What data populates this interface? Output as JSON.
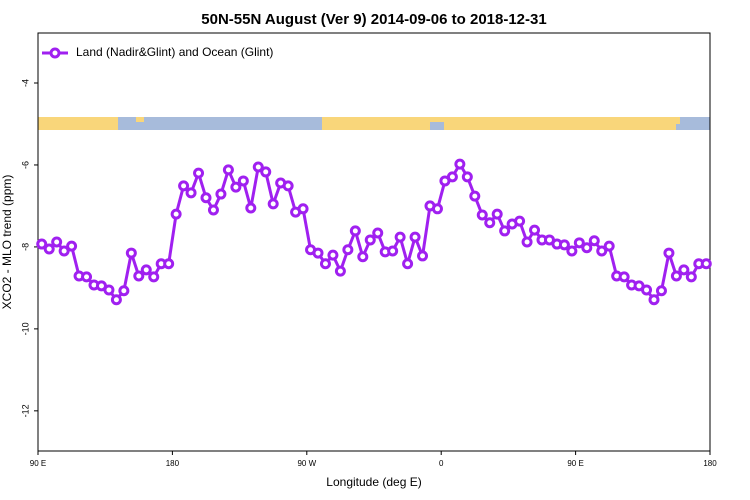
{
  "chart_data": {
    "type": "line",
    "title": "50N-55N August (Ver 9)   2014-09-06 to 2018-12-31",
    "x_label": "Longitude (deg E)",
    "y_label": "XCO2 - MLO trend (ppm)",
    "legend_position": "upper left",
    "xlim": [
      90,
      540
    ],
    "ylim": [
      -12.98,
      -2.78
    ],
    "xticks": [
      {
        "value": 90,
        "label": "90 E"
      },
      180,
      {
        "value": 270,
        "label": "90 W"
      },
      {
        "value": 360,
        "label": "0"
      },
      {
        "value": 450,
        "label": "90 E"
      },
      {
        "value": 540,
        "label": "180"
      }
    ],
    "yticks": [
      -12,
      -10,
      -8,
      -6,
      -4
    ],
    "x": [
      92.5,
      97.5,
      102.5,
      107.5,
      112.5,
      117.5,
      122.5,
      127.5,
      132.5,
      137.5,
      142.5,
      147.5,
      152.5,
      157.5,
      162.5,
      167.5,
      172.5,
      177.5,
      182.5,
      187.5,
      192.5,
      197.5,
      202.5,
      207.5,
      212.5,
      217.5,
      222.5,
      227.5,
      232.5,
      237.5,
      242.5,
      247.5,
      252.5,
      257.5,
      262.5,
      267.5,
      272.5,
      277.5,
      282.5,
      287.5,
      292.5,
      297.5,
      302.5,
      307.5,
      312.5,
      317.5,
      322.5,
      327.5,
      332.5,
      337.5,
      342.5,
      347.5,
      352.5,
      357.5,
      362.5,
      367.5,
      372.5,
      377.5,
      382.5,
      387.5,
      392.5,
      397.5,
      402.5,
      407.5,
      412.5,
      417.5,
      422.5,
      427.5,
      432.5,
      437.5,
      442.5,
      447.5,
      452.5,
      457.5,
      462.5,
      467.5,
      472.5,
      477.5,
      482.5,
      487.5,
      492.5,
      497.5,
      502.5,
      507.5,
      512.5,
      517.5,
      522.5,
      527.5,
      532.5,
      537.5
    ],
    "series": [
      {
        "name": "Land (Nadir&Glint) and Ocean (Glint)",
        "color": "#a020f0",
        "values": [
          -7.93,
          -8.05,
          -7.88,
          -8.1,
          -7.98,
          -8.71,
          -8.73,
          -8.93,
          -8.95,
          -9.05,
          -9.29,
          -9.07,
          -8.15,
          -8.71,
          -8.56,
          -8.73,
          -8.41,
          -8.41,
          -7.2,
          -6.51,
          -6.68,
          -6.2,
          -6.8,
          -7.1,
          -6.71,
          -6.12,
          -6.54,
          -6.39,
          -7.05,
          -6.05,
          -6.17,
          -6.95,
          -6.44,
          -6.51,
          -7.15,
          -7.07,
          -8.07,
          -8.15,
          -8.41,
          -8.2,
          -8.59,
          -8.07,
          -7.61,
          -8.24,
          -7.83,
          -7.66,
          -8.12,
          -8.1,
          -7.76,
          -8.41,
          -7.76,
          -8.22,
          -7.0,
          -7.07,
          -6.39,
          -6.29,
          -5.98,
          -6.29,
          -6.76,
          -7.22,
          -7.41,
          -7.2,
          -7.61,
          -7.44,
          -7.37,
          -7.88,
          -7.59,
          -7.83,
          -7.83,
          -7.93,
          -7.95,
          -8.1,
          -7.9,
          -8.02,
          -7.85,
          -8.1,
          -7.98,
          -8.71,
          -8.73,
          -8.93,
          -8.95,
          -9.05,
          -9.29,
          -9.07,
          -8.15,
          -8.71,
          -8.56,
          -8.73,
          -8.41,
          -8.41
        ]
      }
    ]
  }
}
